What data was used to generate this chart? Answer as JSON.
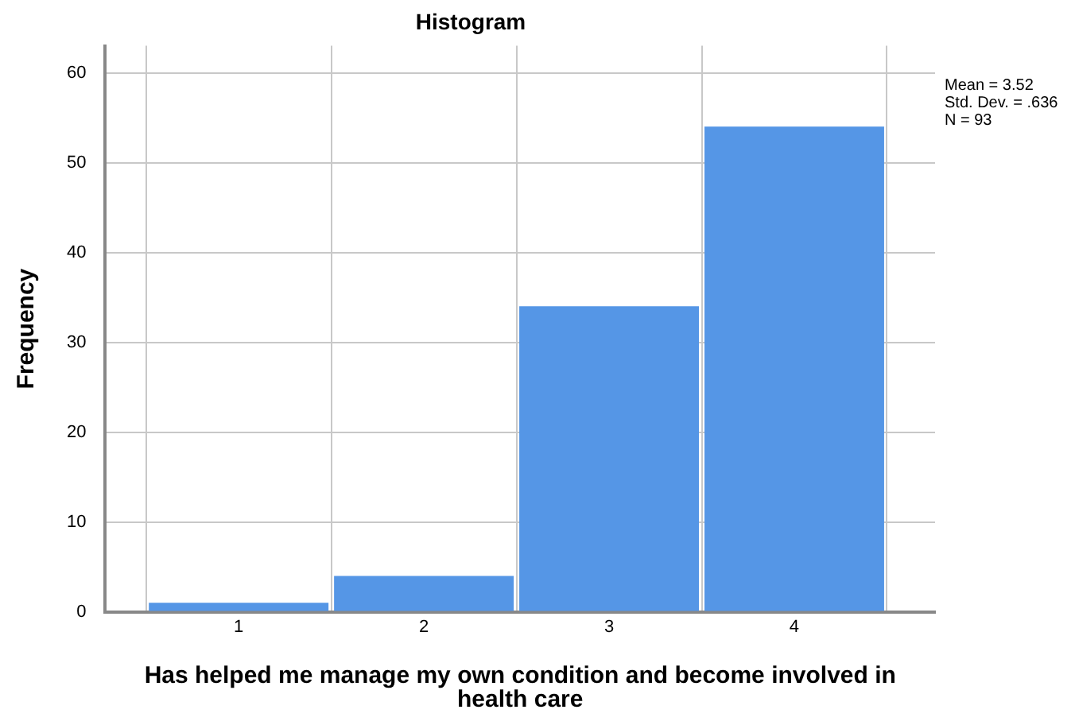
{
  "chart_data": {
    "type": "histogram",
    "title": "Histogram",
    "xlabel": "Has helped me manage my own condition and become involved in health care",
    "ylabel": "Frequency",
    "bins": [
      0.5,
      1.5,
      2.5,
      3.5,
      4.5
    ],
    "values": [
      1,
      4,
      34,
      54
    ],
    "color": "#5596e6",
    "xlim": [
      0.28,
      4.76
    ],
    "xticks": [
      1,
      2,
      3,
      4
    ],
    "ylim": [
      0,
      63
    ],
    "yticks": [
      0,
      10,
      20,
      30,
      40,
      50,
      60
    ],
    "grid": true,
    "annotations": [
      "Mean = 3.52",
      "Std. Dev. = .636",
      "N = 93"
    ]
  }
}
